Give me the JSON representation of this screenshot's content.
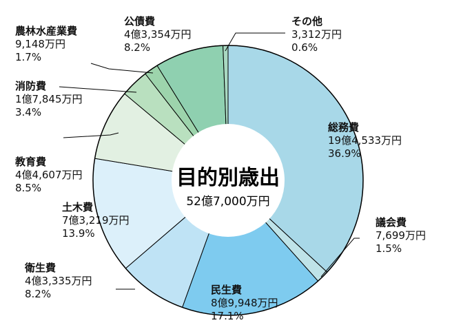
{
  "chart_data": {
    "type": "pie",
    "center_title": "目的別歳出",
    "center_total": "52億7,000万円",
    "slices": [
      {
        "name": "総務費",
        "amount": "19億4,533万円",
        "percent_label": "36.9%",
        "value": 36.9,
        "color": "#a8d8e8"
      },
      {
        "name": "議会費",
        "amount": "7,699万円",
        "percent_label": "1.5%",
        "value": 1.5,
        "color": "#bfe3e8"
      },
      {
        "name": "民生費",
        "amount": "8億9,948万円",
        "percent_label": "17.1%",
        "value": 17.1,
        "color": "#7ecbef"
      },
      {
        "name": "衛生費",
        "amount": "4億3,335万円",
        "percent_label": "8.2%",
        "value": 8.2,
        "color": "#bfe3f5"
      },
      {
        "name": "土木費",
        "amount": "7億3,219万円",
        "percent_label": "13.9%",
        "value": 13.9,
        "color": "#dcf0fa"
      },
      {
        "name": "教育費",
        "amount": "4億4,607万円",
        "percent_label": "8.5%",
        "value": 8.5,
        "color": "#e2f0e2"
      },
      {
        "name": "消防費",
        "amount": "1億7,845万円",
        "percent_label": "3.4%",
        "value": 3.4,
        "color": "#b9e0bf"
      },
      {
        "name": "農林水産業費",
        "amount": "9,148万円",
        "percent_label": "1.7%",
        "value": 1.7,
        "color": "#9dd4ac"
      },
      {
        "name": "公債費",
        "amount": "4億3,354万円",
        "percent_label": "8.2%",
        "value": 8.2,
        "color": "#8fd0b0"
      },
      {
        "name": "その他",
        "amount": "3,312万円",
        "percent_label": "0.6%",
        "value": 0.6,
        "color": "#a9d9c2"
      }
    ]
  }
}
